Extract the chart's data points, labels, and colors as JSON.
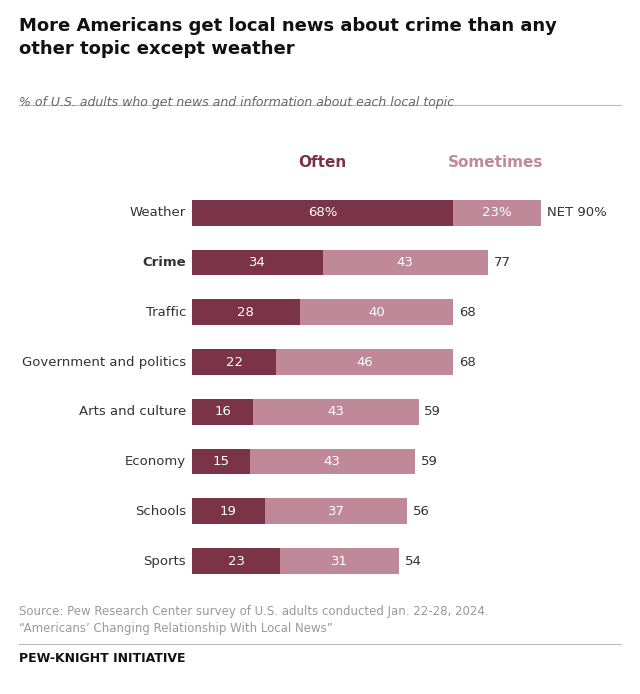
{
  "title": "More Americans get local news about crime than any\nother topic except weather",
  "subtitle": "% of U.S. adults who get news and information about each local topic",
  "categories": [
    "Weather",
    "Crime",
    "Traffic",
    "Government and politics",
    "Arts and culture",
    "Economy",
    "Schools",
    "Sports"
  ],
  "bold_categories": [
    "Crime"
  ],
  "often_values": [
    68,
    34,
    28,
    22,
    16,
    15,
    19,
    23
  ],
  "sometimes_values": [
    23,
    43,
    40,
    46,
    43,
    43,
    37,
    31
  ],
  "often_labels": [
    "68%",
    "34",
    "28",
    "22",
    "16",
    "15",
    "19",
    "23"
  ],
  "sometimes_labels": [
    "23%",
    "43",
    "40",
    "46",
    "43",
    "43",
    "37",
    "31"
  ],
  "net_labels": [
    "NET 90%",
    "77",
    "68",
    "68",
    "59",
    "59",
    "56",
    "54"
  ],
  "color_often": "#7B3348",
  "color_sometimes": "#C0899A",
  "bar_height": 0.52,
  "source_text": "Source: Pew Research Center survey of U.S. adults conducted Jan. 22-28, 2024.\n“Americans’ Changing Relationship With Local News”",
  "footer_text": "PEW-KNIGHT INITIATIVE",
  "bg_color": "#FFFFFF",
  "text_color": "#333333",
  "legend_often_label": "Often",
  "legend_sometimes_label": "Sometimes",
  "legend_often_color": "#7B3348",
  "legend_sometimes_color": "#C0899A"
}
